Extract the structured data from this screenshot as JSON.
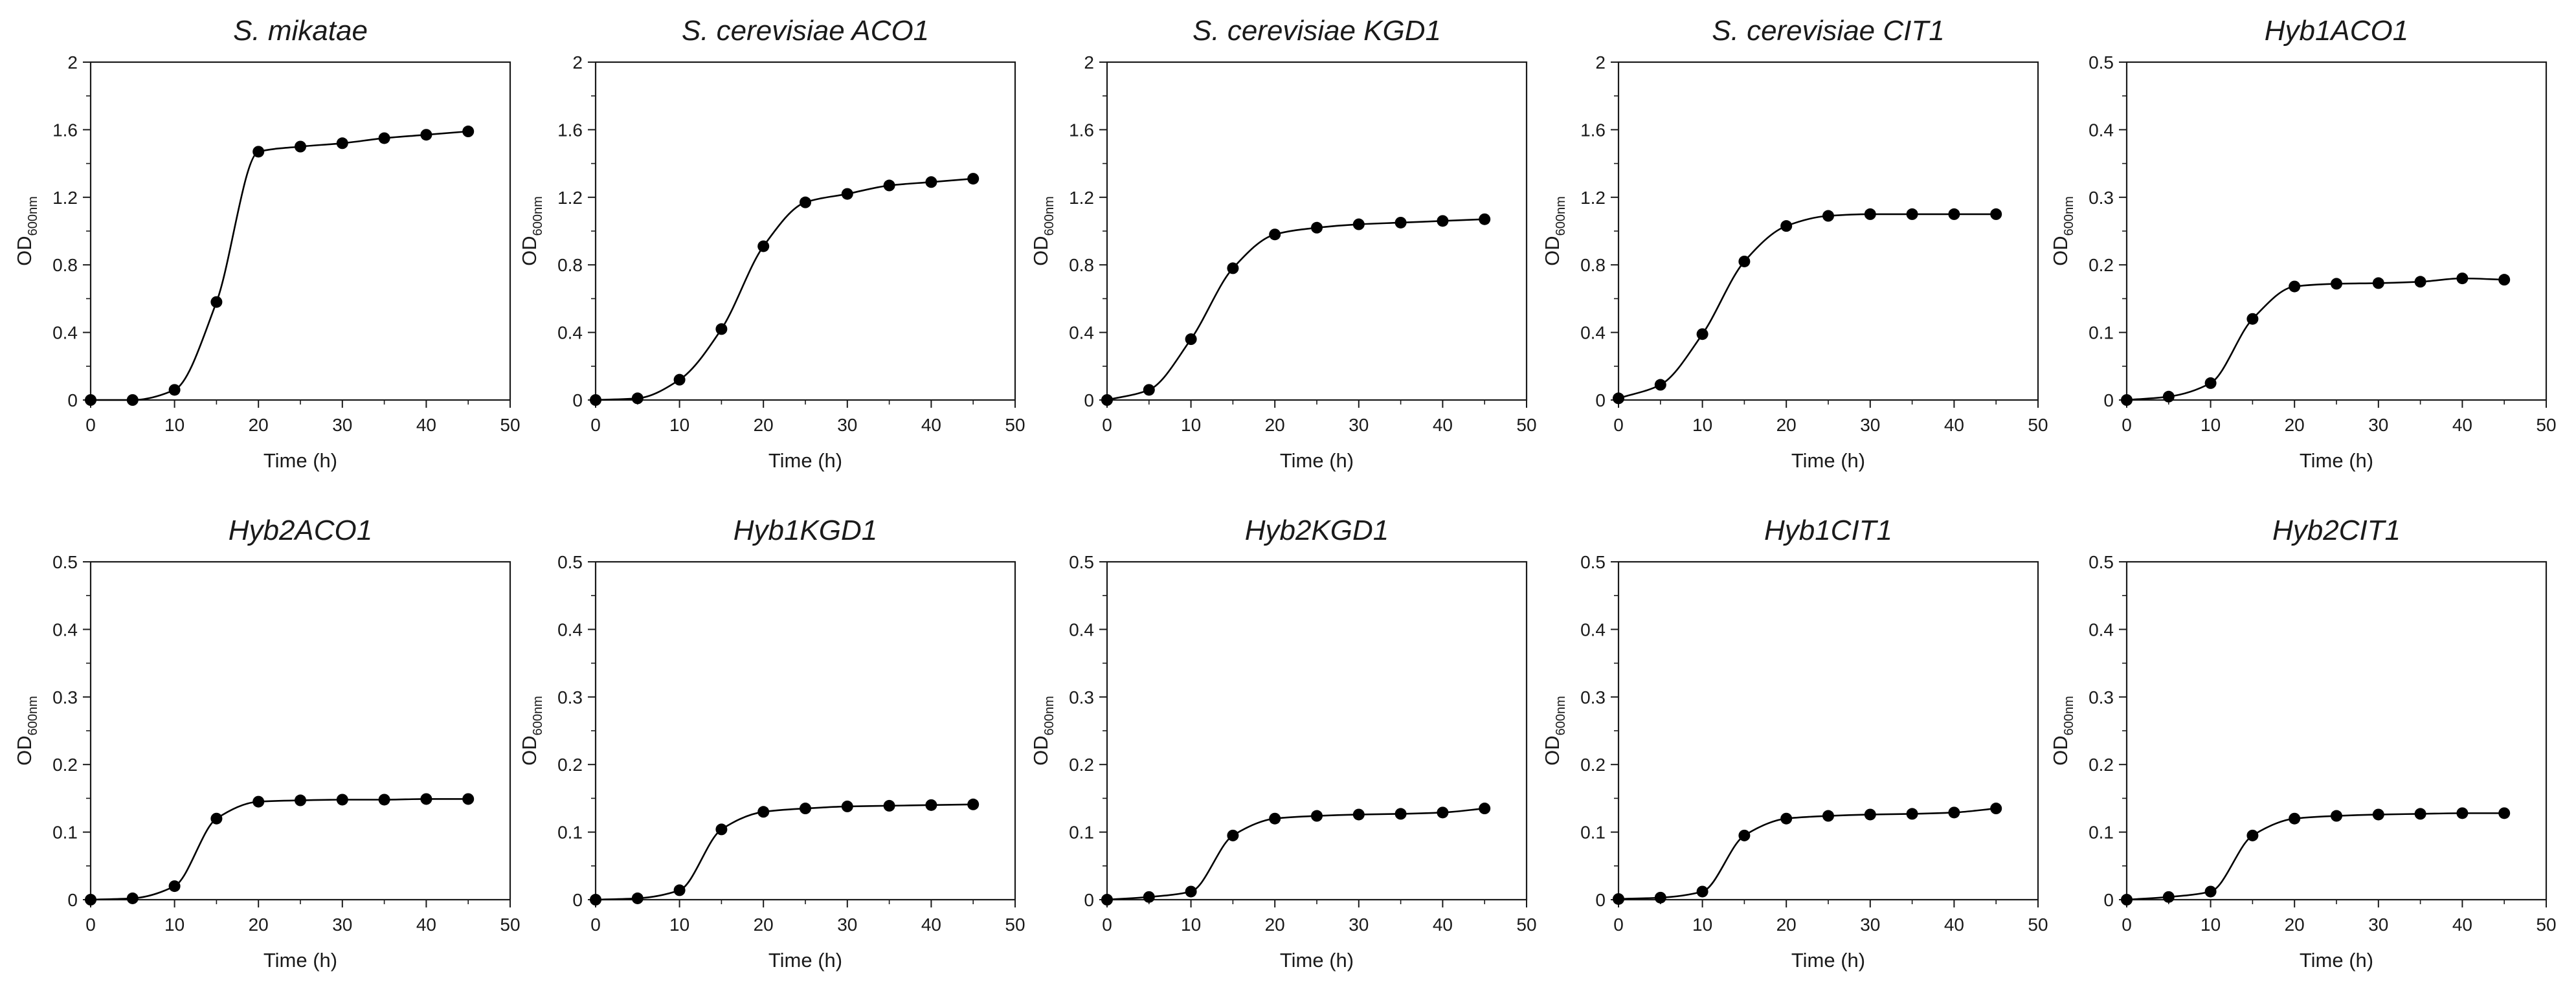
{
  "chart_data": [
    {
      "type": "line",
      "title": "S. mikatae",
      "xlabel": "Time (h)",
      "ylabel": "OD",
      "ylabel_sub": "600nm",
      "xlim": [
        0,
        50
      ],
      "ylim": [
        0,
        2
      ],
      "xticks": [
        0,
        10,
        20,
        30,
        40,
        50
      ],
      "xtick_labels": [
        "0",
        "10",
        "20",
        "30",
        "40",
        "50"
      ],
      "yticks": [
        0,
        0.4,
        0.8,
        1.2,
        1.6,
        2
      ],
      "ytick_labels": [
        "0",
        "0.4",
        "0.8",
        "1.2",
        "1.6",
        "2"
      ],
      "x": [
        0,
        5,
        10,
        15,
        20,
        25,
        30,
        35,
        40,
        45
      ],
      "y": [
        0.0,
        0.0,
        0.06,
        0.58,
        1.47,
        1.5,
        1.52,
        1.55,
        1.57,
        1.59
      ],
      "color": "#000000"
    },
    {
      "type": "line",
      "title": "S. cerevisiae ACO1",
      "xlabel": "Time (h)",
      "ylabel": "OD",
      "ylabel_sub": "600nm",
      "xlim": [
        0,
        50
      ],
      "ylim": [
        0,
        2
      ],
      "xticks": [
        0,
        10,
        20,
        30,
        40,
        50
      ],
      "xtick_labels": [
        "0",
        "10",
        "20",
        "30",
        "40",
        "50"
      ],
      "yticks": [
        0,
        0.4,
        0.8,
        1.2,
        1.6,
        2
      ],
      "ytick_labels": [
        "0",
        "0.4",
        "0.8",
        "1.2",
        "1.6",
        "2"
      ],
      "x": [
        0,
        5,
        10,
        15,
        20,
        25,
        30,
        35,
        40,
        45
      ],
      "y": [
        0.0,
        0.01,
        0.12,
        0.42,
        0.91,
        1.17,
        1.22,
        1.27,
        1.29,
        1.31
      ],
      "color": "#000000"
    },
    {
      "type": "line",
      "title": "S. cerevisiae KGD1",
      "xlabel": "Time (h)",
      "ylabel": "OD",
      "ylabel_sub": "600nm",
      "xlim": [
        0,
        50
      ],
      "ylim": [
        0,
        2
      ],
      "xticks": [
        0,
        10,
        20,
        30,
        40,
        50
      ],
      "xtick_labels": [
        "0",
        "10",
        "20",
        "30",
        "40",
        "50"
      ],
      "yticks": [
        0,
        0.4,
        0.8,
        1.2,
        1.6,
        2
      ],
      "ytick_labels": [
        "0",
        "0.4",
        "0.8",
        "1.2",
        "1.6",
        "2"
      ],
      "x": [
        0,
        5,
        10,
        15,
        20,
        25,
        30,
        35,
        40,
        45
      ],
      "y": [
        0.0,
        0.06,
        0.36,
        0.78,
        0.98,
        1.02,
        1.04,
        1.05,
        1.06,
        1.07
      ],
      "color": "#000000"
    },
    {
      "type": "line",
      "title": "S. cerevisiae CIT1",
      "xlabel": "Time (h)",
      "ylabel": "OD",
      "ylabel_sub": "600nm",
      "xlim": [
        0,
        50
      ],
      "ylim": [
        0,
        2
      ],
      "xticks": [
        0,
        10,
        20,
        30,
        40,
        50
      ],
      "xtick_labels": [
        "0",
        "10",
        "20",
        "30",
        "40",
        "50"
      ],
      "yticks": [
        0,
        0.4,
        0.8,
        1.2,
        1.6,
        2
      ],
      "ytick_labels": [
        "0",
        "0.4",
        "0.8",
        "1.2",
        "1.6",
        "2"
      ],
      "x": [
        0,
        5,
        10,
        15,
        20,
        25,
        30,
        35,
        40,
        45
      ],
      "y": [
        0.01,
        0.09,
        0.39,
        0.82,
        1.03,
        1.09,
        1.1,
        1.1,
        1.1,
        1.1
      ],
      "color": "#000000"
    },
    {
      "type": "line",
      "title": "Hyb1ACO1",
      "xlabel": "Time (h)",
      "ylabel": "OD",
      "ylabel_sub": "600nm",
      "xlim": [
        0,
        50
      ],
      "ylim": [
        0,
        0.5
      ],
      "xticks": [
        0,
        10,
        20,
        30,
        40,
        50
      ],
      "xtick_labels": [
        "0",
        "10",
        "20",
        "30",
        "40",
        "50"
      ],
      "yticks": [
        0,
        0.1,
        0.2,
        0.3,
        0.4,
        0.5
      ],
      "ytick_labels": [
        "0",
        "0.1",
        "0.2",
        "0.3",
        "0.4",
        "0.5"
      ],
      "x": [
        0,
        5,
        10,
        15,
        20,
        25,
        30,
        35,
        40,
        45
      ],
      "y": [
        0.0,
        0.005,
        0.025,
        0.12,
        0.168,
        0.172,
        0.173,
        0.175,
        0.18,
        0.178
      ],
      "color": "#000000"
    },
    {
      "type": "line",
      "title": "Hyb2ACO1",
      "xlabel": "Time (h)",
      "ylabel": "OD",
      "ylabel_sub": "600nm",
      "xlim": [
        0,
        50
      ],
      "ylim": [
        0,
        0.5
      ],
      "xticks": [
        0,
        10,
        20,
        30,
        40,
        50
      ],
      "xtick_labels": [
        "0",
        "10",
        "20",
        "30",
        "40",
        "50"
      ],
      "yticks": [
        0,
        0.1,
        0.2,
        0.3,
        0.4,
        0.5
      ],
      "ytick_labels": [
        "0",
        "0.1",
        "0.2",
        "0.3",
        "0.4",
        "0.5"
      ],
      "x": [
        0,
        5,
        10,
        15,
        20,
        25,
        30,
        35,
        40,
        45
      ],
      "y": [
        0.0,
        0.002,
        0.02,
        0.12,
        0.145,
        0.147,
        0.148,
        0.148,
        0.149,
        0.149
      ],
      "color": "#000000"
    },
    {
      "type": "line",
      "title": "Hyb1KGD1",
      "xlabel": "Time (h)",
      "ylabel": "OD",
      "ylabel_sub": "600nm",
      "xlim": [
        0,
        50
      ],
      "ylim": [
        0,
        0.5
      ],
      "xticks": [
        0,
        10,
        20,
        30,
        40,
        50
      ],
      "xtick_labels": [
        "0",
        "10",
        "20",
        "30",
        "40",
        "50"
      ],
      "yticks": [
        0,
        0.1,
        0.2,
        0.3,
        0.4,
        0.5
      ],
      "ytick_labels": [
        "0",
        "0.1",
        "0.2",
        "0.3",
        "0.4",
        "0.5"
      ],
      "x": [
        0,
        5,
        10,
        15,
        20,
        25,
        30,
        35,
        40,
        45
      ],
      "y": [
        0.0,
        0.002,
        0.014,
        0.104,
        0.13,
        0.135,
        0.138,
        0.139,
        0.14,
        0.141
      ],
      "color": "#000000"
    },
    {
      "type": "line",
      "title": "Hyb2KGD1",
      "xlabel": "Time (h)",
      "ylabel": "OD",
      "ylabel_sub": "600nm",
      "xlim": [
        0,
        50
      ],
      "ylim": [
        0,
        0.5
      ],
      "xticks": [
        0,
        10,
        20,
        30,
        40,
        50
      ],
      "xtick_labels": [
        "0",
        "10",
        "20",
        "30",
        "40",
        "50"
      ],
      "yticks": [
        0,
        0.1,
        0.2,
        0.3,
        0.4,
        0.5
      ],
      "ytick_labels": [
        "0",
        "0.1",
        "0.2",
        "0.3",
        "0.4",
        "0.5"
      ],
      "x": [
        0,
        5,
        10,
        15,
        20,
        25,
        30,
        35,
        40,
        45
      ],
      "y": [
        0.0,
        0.004,
        0.012,
        0.095,
        0.12,
        0.124,
        0.126,
        0.127,
        0.129,
        0.135
      ],
      "color": "#000000"
    },
    {
      "type": "line",
      "title": "Hyb1CIT1",
      "xlabel": "Time (h)",
      "ylabel": "OD",
      "ylabel_sub": "600nm",
      "xlim": [
        0,
        50
      ],
      "ylim": [
        0,
        0.5
      ],
      "xticks": [
        0,
        10,
        20,
        30,
        40,
        50
      ],
      "xtick_labels": [
        "0",
        "10",
        "20",
        "30",
        "40",
        "50"
      ],
      "yticks": [
        0,
        0.1,
        0.2,
        0.3,
        0.4,
        0.5
      ],
      "ytick_labels": [
        "0",
        "0.1",
        "0.2",
        "0.3",
        "0.4",
        "0.5"
      ],
      "x": [
        0,
        5,
        10,
        15,
        20,
        25,
        30,
        35,
        40,
        45
      ],
      "y": [
        0.001,
        0.003,
        0.012,
        0.095,
        0.12,
        0.124,
        0.126,
        0.127,
        0.129,
        0.135
      ],
      "color": "#000000"
    },
    {
      "type": "line",
      "title": "Hyb2CIT1",
      "xlabel": "Time (h)",
      "ylabel": "OD",
      "ylabel_sub": "600nm",
      "xlim": [
        0,
        50
      ],
      "ylim": [
        0,
        0.5
      ],
      "xticks": [
        0,
        10,
        20,
        30,
        40,
        50
      ],
      "xtick_labels": [
        "0",
        "10",
        "20",
        "30",
        "40",
        "50"
      ],
      "yticks": [
        0,
        0.1,
        0.2,
        0.3,
        0.4,
        0.5
      ],
      "ytick_labels": [
        "0",
        "0.1",
        "0.2",
        "0.3",
        "0.4",
        "0.5"
      ],
      "x": [
        0,
        5,
        10,
        15,
        20,
        25,
        30,
        35,
        40,
        45
      ],
      "y": [
        0.0,
        0.004,
        0.012,
        0.095,
        0.12,
        0.124,
        0.126,
        0.127,
        0.128,
        0.128
      ],
      "color": "#000000"
    }
  ]
}
